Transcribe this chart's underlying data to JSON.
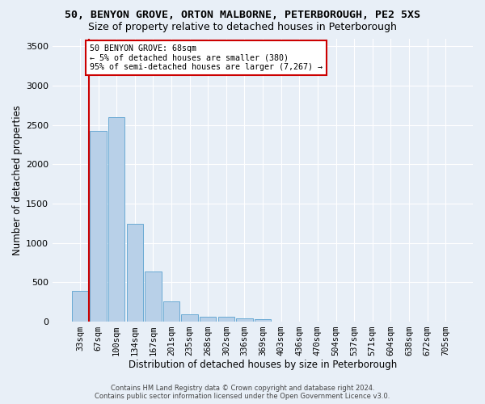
{
  "title1": "50, BENYON GROVE, ORTON MALBORNE, PETERBOROUGH, PE2 5XS",
  "title2": "Size of property relative to detached houses in Peterborough",
  "xlabel": "Distribution of detached houses by size in Peterborough",
  "ylabel": "Number of detached properties",
  "footer1": "Contains HM Land Registry data © Crown copyright and database right 2024.",
  "footer2": "Contains public sector information licensed under the Open Government Licence v3.0.",
  "categories": [
    "33sqm",
    "67sqm",
    "100sqm",
    "134sqm",
    "167sqm",
    "201sqm",
    "235sqm",
    "268sqm",
    "302sqm",
    "336sqm",
    "369sqm",
    "403sqm",
    "436sqm",
    "470sqm",
    "504sqm",
    "537sqm",
    "571sqm",
    "604sqm",
    "638sqm",
    "672sqm",
    "705sqm"
  ],
  "values": [
    390,
    2420,
    2600,
    1240,
    640,
    260,
    95,
    60,
    60,
    45,
    30,
    0,
    0,
    0,
    0,
    0,
    0,
    0,
    0,
    0,
    0
  ],
  "bar_color": "#b8d0e8",
  "bar_edge_color": "#6aaad4",
  "marker_line_color": "#cc0000",
  "annotation_line1": "50 BENYON GROVE: 68sqm",
  "annotation_line2": "← 5% of detached houses are smaller (380)",
  "annotation_line3": "95% of semi-detached houses are larger (7,267) →",
  "annotation_box_color": "#ffffff",
  "annotation_box_edge": "#cc0000",
  "ylim": [
    0,
    3600
  ],
  "yticks": [
    0,
    500,
    1000,
    1500,
    2000,
    2500,
    3000,
    3500
  ],
  "background_color": "#e8eff7",
  "grid_color": "#ffffff",
  "title1_fontsize": 9.5,
  "title2_fontsize": 9,
  "axes_fontsize": 8.5,
  "tick_fontsize": 8,
  "xtick_fontsize": 7.5,
  "footer_fontsize": 6.0
}
